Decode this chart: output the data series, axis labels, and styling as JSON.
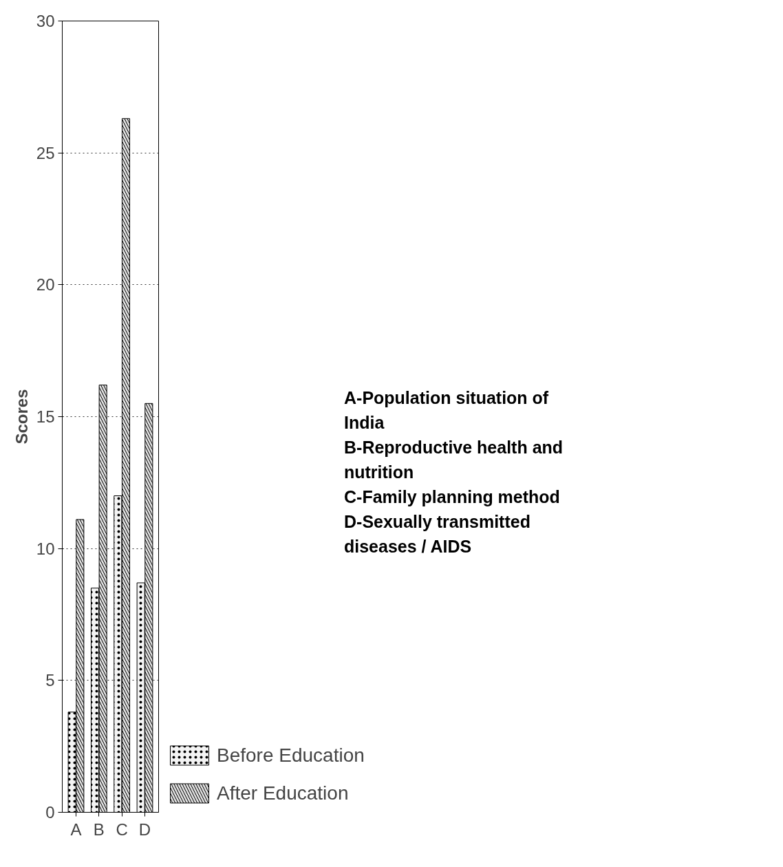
{
  "chart_data": {
    "type": "bar",
    "ylabel": "Scores",
    "categories": [
      "A",
      "B",
      "C",
      "D"
    ],
    "series": [
      {
        "name": "Before Education",
        "color": "#f4f4f4",
        "values": [
          3.8,
          8.5,
          12.0,
          8.7
        ]
      },
      {
        "name": "After Education",
        "color": "#dddddd",
        "values": [
          11.1,
          16.2,
          26.3,
          15.5
        ]
      }
    ],
    "ylim": [
      0,
      30
    ],
    "yticks": [
      0,
      5,
      10,
      15,
      20,
      25,
      30
    ],
    "grid": "y",
    "legend": "right",
    "annotations": [
      "A-Population situation of India",
      "B-Reproductive health and nutrition",
      "C-Family planning method",
      "D-Sexually transmitted diseases / AIDS"
    ]
  }
}
